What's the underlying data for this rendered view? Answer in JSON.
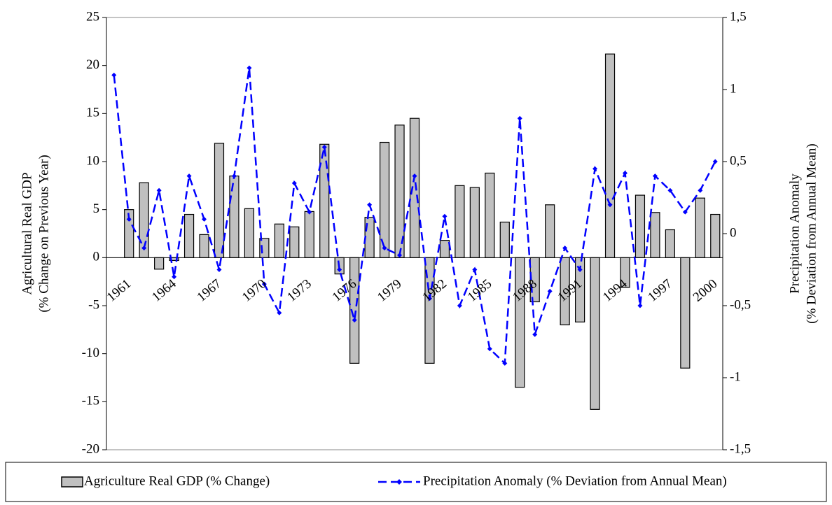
{
  "chart_data": {
    "type": "bar_line",
    "y_label": [
      "Agricultural Real GDP",
      "(% Change on Previous Year)"
    ],
    "y2_label": [
      "Precipitation Anomaly",
      "(% Deviation from Annual Mean)"
    ],
    "categories": [
      "1961",
      null,
      null,
      "1964",
      null,
      null,
      "1967",
      null,
      null,
      "1970",
      null,
      null,
      "1973",
      null,
      null,
      "1976",
      null,
      null,
      "1979",
      null,
      null,
      "1982",
      null,
      null,
      "1985",
      null,
      null,
      "1988",
      null,
      null,
      "1991",
      null,
      null,
      "1994",
      null,
      null,
      "1997",
      null,
      null,
      "2000",
      null
    ],
    "series": [
      {
        "name": "Agriculture Real GDP (% Change)",
        "type": "bar",
        "color": "#c0c0c0",
        "values": [
          null,
          5,
          7.8,
          -1.2,
          -0.3,
          4.5,
          2.4,
          11.9,
          8.5,
          5.1,
          2.0,
          3.5,
          3.2,
          4.8,
          11.8,
          -1.7,
          -11,
          4.2,
          12,
          13.8,
          14.5,
          -11,
          1.8,
          7.5,
          7.3,
          8.8,
          3.7,
          -13.5,
          -4.6,
          5.5,
          -7,
          -6.7,
          -15.8,
          21.2,
          -3.1,
          6.5,
          4.7,
          2.9,
          -11.5,
          6.2,
          4.5
        ]
      },
      {
        "name": "Precipitation Anomaly (% Deviation from Annual Mean)",
        "type": "line",
        "axis": "y2",
        "color": "#0000ff",
        "values": [
          1.1,
          0.1,
          -0.1,
          0.3,
          -0.3,
          0.4,
          0.1,
          -0.25,
          0.4,
          1.15,
          -0.35,
          -0.55,
          0.35,
          0.15,
          0.6,
          -0.25,
          -0.6,
          0.2,
          -0.1,
          -0.15,
          0.4,
          -0.45,
          0.12,
          -0.5,
          -0.25,
          -0.8,
          -0.9,
          0.8,
          -0.7,
          -0.4,
          -0.1,
          -0.25,
          0.45,
          0.2,
          0.42,
          -0.5,
          0.4,
          0.3,
          0.15,
          0.3,
          0.5
        ]
      }
    ],
    "ylim": [
      -20,
      25
    ],
    "yticks": [
      -20,
      -15,
      -10,
      -5,
      0,
      5,
      10,
      15,
      20,
      25
    ],
    "y2lim": [
      -1.5,
      1.5
    ],
    "y2ticks": [
      {
        "value": -1.5,
        "label": "-1,5"
      },
      -1,
      {
        "value": -0.5,
        "label": "-0,5"
      },
      0,
      {
        "value": 0.5,
        "label": "0,5"
      },
      1,
      {
        "value": 1.5,
        "label": "1,5"
      }
    ],
    "legend": "bottom"
  }
}
